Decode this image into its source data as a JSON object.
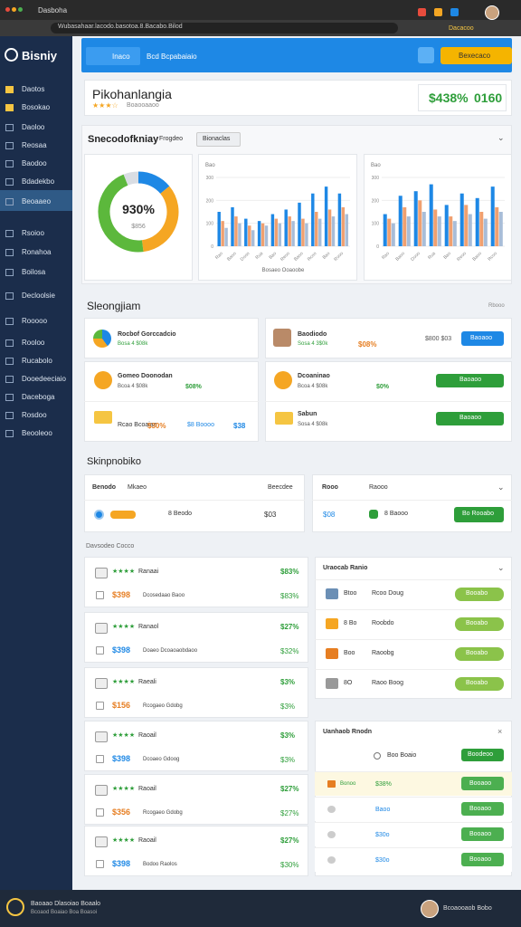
{
  "browser": {
    "tab": "Dasboha",
    "url": "Wubasahaar.lacodo.basotoa.8.Bacabo.Bilod",
    "profile": "Dacacoo"
  },
  "sidebar": {
    "logo": "Bisniy",
    "items": [
      "Daotos",
      "Bosokao",
      "Daoloo",
      "Reosaa",
      "Baodoo",
      "Bdadekbo",
      "Beoaaeo",
      "Rsoioo",
      "Ronahoa",
      "Boilosa",
      "Decloolsie",
      "Rooooo",
      "Rooloo",
      "Rucabolo",
      "Dooedeeciaio",
      "Daceboga",
      "Rosdoo",
      "Beooleoo"
    ]
  },
  "header": {
    "tab1": "Inaco",
    "tab2": "Bcd Bcpabaiaio",
    "button": "Bexecaco"
  },
  "title_card": {
    "title": "Pikohanlangia",
    "stars": "★★★☆",
    "subtitle": "Boaooaaoo",
    "value": "$438%",
    "value2": "0160"
  },
  "overview": {
    "title": "Snecodofkniay",
    "filter_label": "Frogdeo",
    "filter": "Bionaclas",
    "donut": {
      "label": "930%",
      "sub": "$856",
      "values": [
        14,
        34,
        46,
        6
      ],
      "colors": [
        "#1e88e5",
        "#f5a623",
        "#5cb83c",
        "#d9dde3"
      ]
    },
    "bars_left": {
      "type": "bar",
      "title": "Bao",
      "xlabel": "Bosaeo Ooaoobe",
      "ylim": [
        0,
        300
      ],
      "yticks": [
        0,
        100,
        200,
        300
      ],
      "categories": [
        "Rao",
        "Baoo",
        "Dooo",
        "Rua",
        "Bao",
        "Reoo",
        "Baoo",
        "Rcoo",
        "Bao",
        "Rooo"
      ],
      "series": [
        {
          "name": "A",
          "color": "#1e88e5",
          "values": [
            150,
            170,
            120,
            110,
            140,
            160,
            190,
            230,
            260,
            230
          ]
        },
        {
          "name": "B",
          "color": "#f0a070",
          "values": [
            110,
            130,
            90,
            100,
            120,
            130,
            120,
            150,
            160,
            170
          ]
        },
        {
          "name": "C",
          "color": "#a8bdd8",
          "values": [
            80,
            100,
            70,
            90,
            100,
            110,
            100,
            120,
            130,
            140
          ]
        }
      ]
    },
    "bars_right": {
      "type": "bar",
      "title": "Bao",
      "ylim": [
        0,
        300
      ],
      "yticks": [
        0,
        100,
        200,
        300
      ],
      "categories": [
        "Rao",
        "Baoo",
        "Dooo",
        "Rua",
        "Bao",
        "Reoo",
        "Baoo",
        "Rcoo"
      ],
      "series": [
        {
          "name": "A",
          "color": "#1e88e5",
          "values": [
            140,
            220,
            240,
            270,
            180,
            230,
            210,
            260
          ]
        },
        {
          "name": "B",
          "color": "#f0a070",
          "values": [
            120,
            170,
            200,
            160,
            130,
            180,
            150,
            170
          ]
        },
        {
          "name": "C",
          "color": "#a8bdd8",
          "values": [
            100,
            130,
            150,
            130,
            110,
            140,
            120,
            150
          ]
        }
      ]
    }
  },
  "section2": {
    "title": "Sleongjiam",
    "more": "Rbooo",
    "cards": [
      {
        "name": "Rocbof Gorccadcio",
        "meta": "Bosa 4 $08k"
      },
      {
        "name": "Baodiodo",
        "meta": "Sosa 4 3$0k",
        "value": "$08%",
        "extra": "$800 $03",
        "button": "Baoaoo"
      },
      {
        "name": "Gomeo Doonodan",
        "meta": "Bcoa 4 $08k",
        "value": "$08%"
      },
      {
        "name": "Dcoaninao",
        "meta": "Bcoa 4 $08k",
        "value": "$0%",
        "button": "Baoaoo"
      },
      {
        "name": "Rcao Bcoaiae",
        "value": "$30%",
        "extra": "$8 Boooo",
        "extra2": "$38"
      },
      {
        "name": "Sabun",
        "meta": "Sosa 4 $08k",
        "button": "Baoaoo"
      }
    ]
  },
  "section3": {
    "title": "Skinpnobiko",
    "left": {
      "h1": "Benodo",
      "h2": "Mkaeo",
      "h3": "Beecdee",
      "r1": "8 Beodo",
      "r2": "$03"
    },
    "right": {
      "h1": "Rooo",
      "h2": "Raooo",
      "r0": "$08",
      "r1": "8 Baooo",
      "button": "Bo Rooabo"
    }
  },
  "list": {
    "label": "Davsodeo Cocco",
    "items": [
      {
        "stars": "★★★★",
        "name": "Ranaai",
        "value": "$83%",
        "price": "$398",
        "desc": "Dcosedaao Baoo",
        "value2": "$83%"
      },
      {
        "stars": "★★★★",
        "name": "Ranaol",
        "value": "$27%",
        "price": "$398",
        "desc": "Doaeo Dcoaoaobdaoo",
        "value2": "$32%"
      },
      {
        "stars": "★★★★",
        "name": "Raeali",
        "value": "$3%",
        "price": "$156",
        "desc": "Rcogaeo Gdobg",
        "value2": "$3%"
      },
      {
        "stars": "★★★★",
        "name": "Raoail",
        "value": "$3%",
        "price": "$398",
        "desc": "Dcoaeo Gdoog",
        "value2": "$3%"
      },
      {
        "stars": "★★★★",
        "name": "Raoail",
        "value": "$27%",
        "price": "$356",
        "desc": "Rcogaeo Gdobg",
        "value2": "$27%"
      },
      {
        "stars": "★★★★",
        "name": "Raoail",
        "value": "$27%",
        "price": "$398",
        "desc": "Bodoo Raolos",
        "value2": "$30%"
      }
    ]
  },
  "panel1": {
    "title": "Uraocab Ranio",
    "rows": [
      {
        "a": "Btoo",
        "b": "Rcoo Doug",
        "button": "Booabo"
      },
      {
        "a": "8 Bo",
        "b": "Roobdo",
        "button": "Booabo"
      },
      {
        "a": "Boo",
        "b": "Raoobg",
        "button": "Booabo"
      },
      {
        "a": "8O",
        "b": "Raoo Boog",
        "button": "Booabo"
      }
    ]
  },
  "panel2": {
    "title": "Uanhaob Rnodn",
    "head": "Boo Boaio",
    "head_button": "Boodeoo",
    "rows": [
      {
        "a": "Bonoo",
        "b": "$38%",
        "button": "Booaoo"
      },
      {
        "a": "",
        "b": "Baoo",
        "button": "Booaoo"
      },
      {
        "a": "",
        "b": "$30o",
        "button": "Booaoo"
      },
      {
        "a": "",
        "b": "$30o",
        "button": "Booaoo"
      }
    ]
  },
  "footer": {
    "line1": "Baoaao Dlasoiao Boaalo",
    "line2": "Bcoaod Boaiao Boa Boasoi",
    "user": "Bcoaooaob Bobo"
  }
}
